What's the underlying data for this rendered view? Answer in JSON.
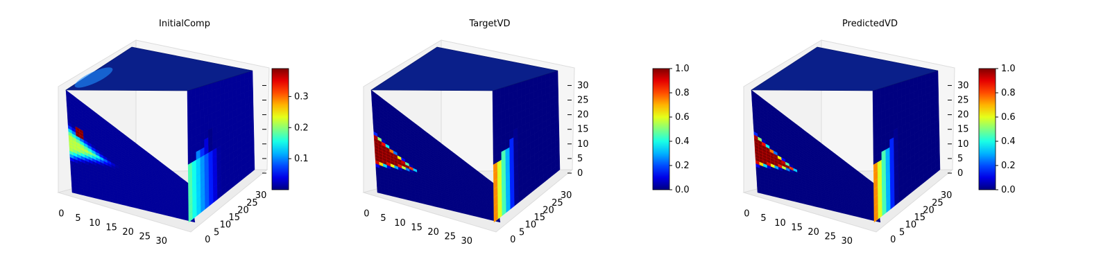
{
  "colormap": "jet",
  "chart_data": [
    {
      "type": "3d-voxel",
      "title": "InitialComp",
      "x_ticks": [
        "0",
        "5",
        "10",
        "15",
        "20",
        "25",
        "30"
      ],
      "y_ticks": [
        "0",
        "5",
        "10",
        "15",
        "20",
        "25",
        "30"
      ],
      "z_ticks": [
        "",
        "",
        "",
        "",
        "",
        "",
        ""
      ],
      "grid": true,
      "colorbar": {
        "range": [
          0.0,
          0.39
        ],
        "ticks": [
          "0.1",
          "0.2",
          "0.3"
        ],
        "tick_values": [
          0.1,
          0.2,
          0.3
        ]
      },
      "field": {
        "background": 0.01,
        "band": {
          "value": 0.22,
          "lower_edge": [
            0.3,
            0.82
          ],
          "upper_edge": [
            0.72,
            0.28
          ],
          "softness": 0.15
        },
        "hot_spot": {
          "value": 0.39,
          "u": 0.1,
          "v": 0.36
        }
      }
    },
    {
      "type": "3d-voxel",
      "title": "TargetVD",
      "x_ticks": [
        "0",
        "5",
        "10",
        "15",
        "20",
        "25",
        "30"
      ],
      "y_ticks": [
        "0",
        "5",
        "10",
        "15",
        "20",
        "25",
        "30"
      ],
      "z_ticks": [
        "0",
        "5",
        "10",
        "15",
        "20",
        "25",
        "30"
      ],
      "grid": true,
      "colorbar": {
        "range": [
          0.0,
          1.0
        ],
        "ticks": [
          "0.0",
          "0.2",
          "0.4",
          "0.6",
          "0.8",
          "1.0"
        ],
        "tick_values": [
          0.0,
          0.2,
          0.4,
          0.6,
          0.8,
          1.0
        ]
      },
      "field": {
        "background": 0.0,
        "band": {
          "value": 1.0,
          "lower_edge": [
            0.4,
            0.98
          ],
          "upper_edge": [
            0.75,
            0.4
          ],
          "softness": 0.05
        }
      }
    },
    {
      "type": "3d-voxel",
      "title": "PredictedVD",
      "x_ticks": [
        "0",
        "5",
        "10",
        "15",
        "20",
        "25",
        "30"
      ],
      "y_ticks": [
        "0",
        "5",
        "10",
        "15",
        "20",
        "25",
        "30"
      ],
      "z_ticks": [
        "0",
        "5",
        "10",
        "15",
        "20",
        "25",
        "30"
      ],
      "grid": true,
      "colorbar": {
        "range": [
          0.0,
          1.0
        ],
        "ticks": [
          "0.0",
          "0.2",
          "0.4",
          "0.6",
          "0.8",
          "1.0"
        ],
        "tick_values": [
          0.0,
          0.2,
          0.4,
          0.6,
          0.8,
          1.0
        ]
      },
      "field": {
        "background": 0.0,
        "band": {
          "value": 1.0,
          "lower_edge": [
            0.4,
            0.98
          ],
          "upper_edge": [
            0.75,
            0.4
          ],
          "softness": 0.05
        }
      }
    }
  ]
}
